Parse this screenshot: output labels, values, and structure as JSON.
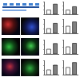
{
  "chart_data": [
    {
      "type": "bar",
      "categories": [
        null,
        null
      ],
      "values": [
        1.0,
        2.4
      ],
      "colors": [
        "#ffffff",
        "#7f7f7f"
      ],
      "ylim": [
        0,
        3
      ],
      "yticks": [
        0,
        1,
        2,
        3
      ],
      "tick_labels": false,
      "grid": false
    },
    {
      "type": "bar",
      "categories": [
        null,
        null
      ],
      "values": [
        1.0,
        1.8
      ],
      "colors": [
        "#ffffff",
        "#7f7f7f"
      ],
      "ylim": [
        0,
        3
      ],
      "yticks": [
        0,
        1,
        2,
        3
      ],
      "tick_labels": false,
      "grid": false
    },
    {
      "type": "bar",
      "categories": [
        null,
        null
      ],
      "values": [
        1.0,
        2.1
      ],
      "colors": [
        "#ffffff",
        "#7f7f7f"
      ],
      "ylim": [
        0,
        3
      ],
      "yticks": [
        0,
        1,
        2,
        3
      ],
      "tick_labels": false,
      "grid": false
    },
    {
      "type": "bar",
      "categories": [
        null,
        null
      ],
      "values": [
        1.0,
        1.6
      ],
      "colors": [
        "#ffffff",
        "#7f7f7f"
      ],
      "ylim": [
        0,
        2
      ],
      "yticks": [
        0,
        1,
        2
      ],
      "tick_labels": false,
      "grid": false
    },
    {
      "type": "bar",
      "categories": [
        null,
        null
      ],
      "values": [
        1.0,
        2.2
      ],
      "colors": [
        "#ffffff",
        "#7f7f7f"
      ],
      "ylim": [
        0,
        3
      ],
      "yticks": [
        0,
        1,
        2,
        3
      ],
      "tick_labels": false,
      "grid": false
    },
    {
      "type": "bar",
      "categories": [
        null,
        null
      ],
      "values": [
        1.0,
        1.5
      ],
      "colors": [
        "#ffffff",
        "#7f7f7f"
      ],
      "ylim": [
        0,
        2
      ],
      "yticks": [
        0,
        1,
        2
      ],
      "tick_labels": false,
      "grid": false
    },
    {
      "type": "bar",
      "categories": [
        null,
        null
      ],
      "values": [
        1.0,
        2.0
      ],
      "colors": [
        "#ffffff",
        "#7f7f7f"
      ],
      "ylim": [
        0,
        3
      ],
      "yticks": [
        0,
        1,
        2,
        3
      ],
      "tick_labels": false,
      "grid": false
    },
    {
      "type": "bar",
      "categories": [
        null,
        null
      ],
      "values": [
        1.0,
        1.7
      ],
      "colors": [
        "#ffffff",
        "#7f7f7f"
      ],
      "ylim": [
        0,
        2
      ],
      "yticks": [
        0,
        1,
        2
      ],
      "tick_labels": false,
      "grid": false
    }
  ]
}
